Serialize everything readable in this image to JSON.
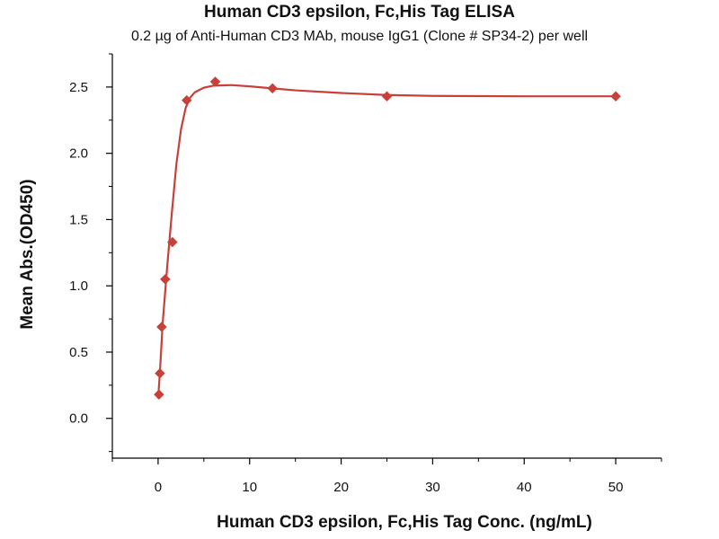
{
  "chart_data": {
    "type": "scatter",
    "title": "Human CD3 epsilon, Fc,His Tag ELISA",
    "subtitle": "0.2 µg of Anti-Human CD3 MAb, mouse IgG1 (Clone # SP34-2) per well",
    "xlabel": "Human CD3 epsilon, Fc,His Tag Conc. (ng/mL)",
    "ylabel": "Mean Abs.(OD450)",
    "xlim": [
      -5,
      55
    ],
    "ylim": [
      -0.3,
      2.75
    ],
    "xticks": [
      "0",
      "10",
      "20",
      "30",
      "40",
      "50"
    ],
    "yticks": [
      "0.0",
      "0.5",
      "1.0",
      "1.5",
      "2.0",
      "2.5"
    ],
    "marker_color": "#c8403a",
    "line_color": "#c8403a",
    "points": [
      {
        "x": 0.098,
        "y": 0.18
      },
      {
        "x": 0.195,
        "y": 0.34
      },
      {
        "x": 0.39,
        "y": 0.69
      },
      {
        "x": 0.78,
        "y": 1.05
      },
      {
        "x": 1.56,
        "y": 1.33
      },
      {
        "x": 3.125,
        "y": 2.4
      },
      {
        "x": 6.25,
        "y": 2.54
      },
      {
        "x": 12.5,
        "y": 2.49
      },
      {
        "x": 25,
        "y": 2.43
      },
      {
        "x": 50,
        "y": 2.43
      }
    ],
    "fit_curve": [
      {
        "x": 0.0,
        "y": 0.15
      },
      {
        "x": 0.2,
        "y": 0.35
      },
      {
        "x": 0.5,
        "y": 0.72
      },
      {
        "x": 1.0,
        "y": 1.15
      },
      {
        "x": 1.5,
        "y": 1.55
      },
      {
        "x": 2.0,
        "y": 1.92
      },
      {
        "x": 2.5,
        "y": 2.18
      },
      {
        "x": 3.0,
        "y": 2.34
      },
      {
        "x": 3.5,
        "y": 2.42
      },
      {
        "x": 4.0,
        "y": 2.46
      },
      {
        "x": 5.0,
        "y": 2.495
      },
      {
        "x": 6.0,
        "y": 2.51
      },
      {
        "x": 8.0,
        "y": 2.515
      },
      {
        "x": 10.0,
        "y": 2.505
      },
      {
        "x": 12.5,
        "y": 2.49
      },
      {
        "x": 15.0,
        "y": 2.475
      },
      {
        "x": 20.0,
        "y": 2.455
      },
      {
        "x": 25.0,
        "y": 2.44
      },
      {
        "x": 30.0,
        "y": 2.433
      },
      {
        "x": 40.0,
        "y": 2.43
      },
      {
        "x": 50.0,
        "y": 2.43
      }
    ],
    "grid": false,
    "legend": "none"
  }
}
